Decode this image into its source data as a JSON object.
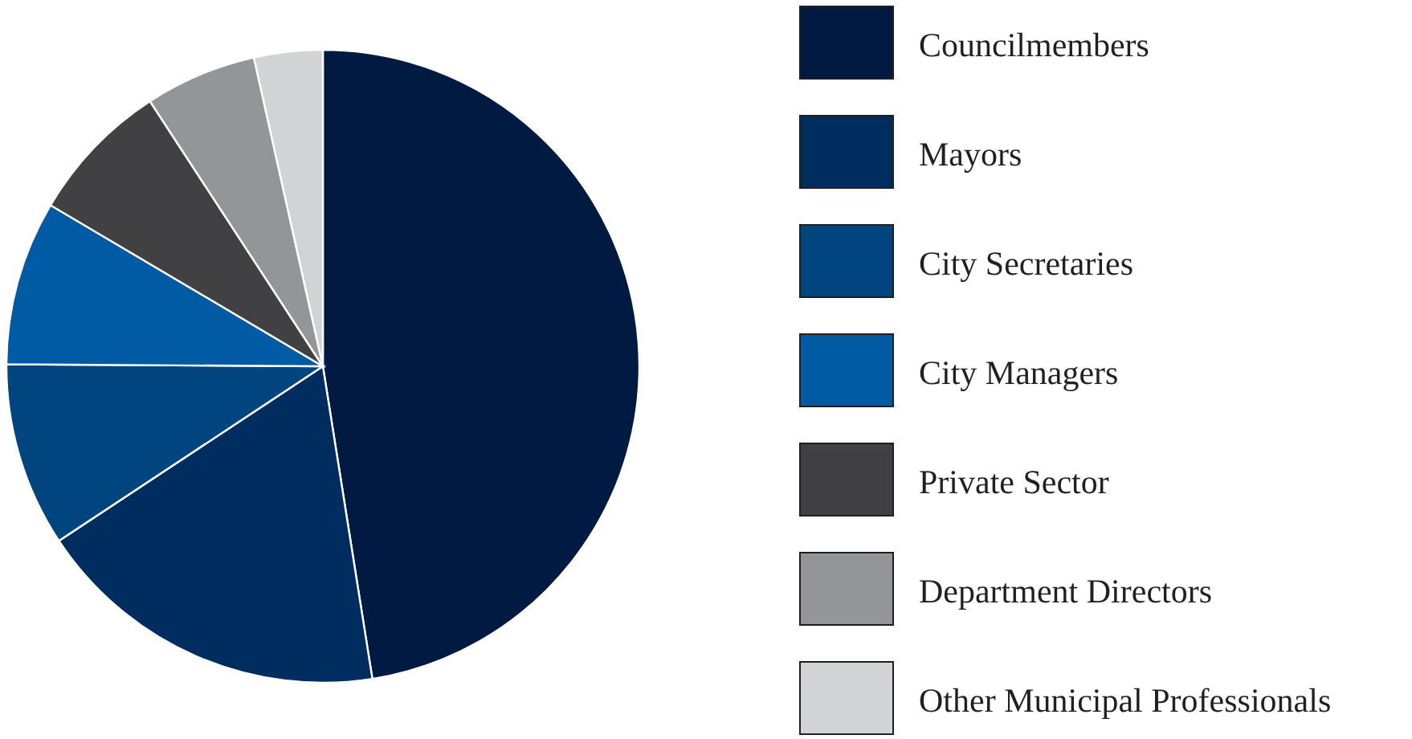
{
  "chart_data": {
    "type": "pie",
    "categories": [
      "Councilmembers",
      "Mayors",
      "City Secretaries",
      "City Managers",
      "Private Sector",
      "Department Directors",
      "Other Municipal Professionals"
    ],
    "values": [
      47.5,
      18.2,
      9.4,
      8.4,
      7.3,
      5.7,
      3.5
    ],
    "colors": [
      "#001a42",
      "#002d5f",
      "#00457e",
      "#005ba4",
      "#414042",
      "#939598",
      "#d1d3d4"
    ],
    "legend": "right"
  }
}
